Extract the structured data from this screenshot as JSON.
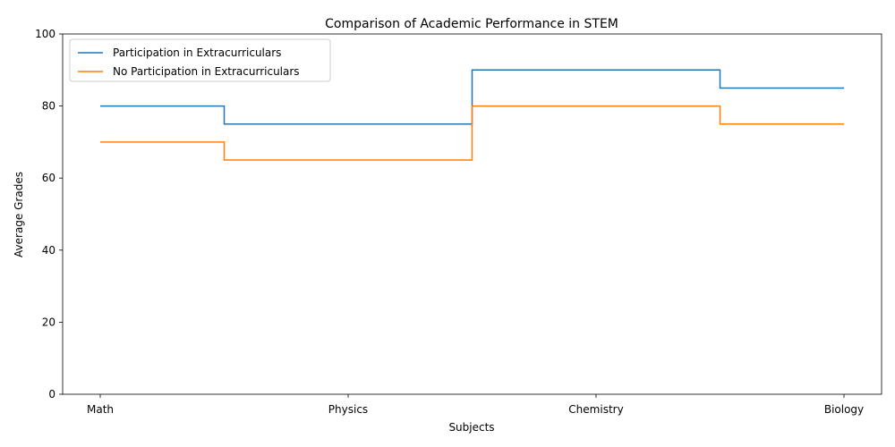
{
  "chart_data": {
    "type": "line",
    "step": "mid",
    "title": "Comparison of Academic Performance in STEM",
    "xlabel": "Subjects",
    "ylabel": "Average Grades",
    "categories": [
      "Math",
      "Physics",
      "Chemistry",
      "Biology"
    ],
    "ylim": [
      0,
      100
    ],
    "yticks": [
      0,
      20,
      40,
      60,
      80,
      100
    ],
    "legend_position": "top-left",
    "grid": false,
    "series": [
      {
        "name": "Participation in Extracurriculars",
        "values": [
          80,
          75,
          90,
          85
        ],
        "color": "#1f77b4"
      },
      {
        "name": "No Participation in Extracurriculars",
        "values": [
          70,
          65,
          80,
          75
        ],
        "color": "#ff7f0e"
      }
    ]
  }
}
